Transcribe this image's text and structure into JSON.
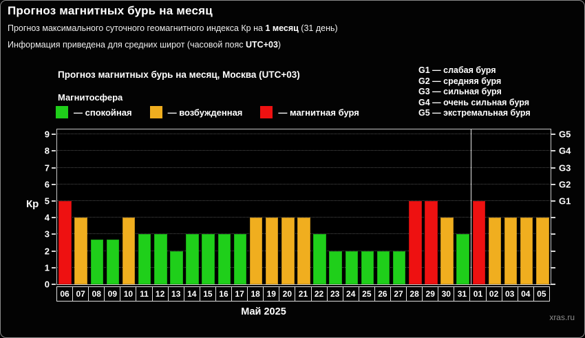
{
  "header": {
    "title": "Прогноз магнитных бурь на месяц",
    "line1": {
      "pre": "Прогноз максимального суточного геомагнитного индекса Кр на ",
      "bold": "1 месяц",
      "post": " (31 день)"
    },
    "line2": {
      "pre": "Информация приведена для средних широт (часовой пояс ",
      "bold": "UTC+03",
      "post": ")"
    }
  },
  "chart": {
    "title": "Прогноз магнитных бурь на месяц, Москва (UTC+03)",
    "legend_title": "Магнитосфера",
    "y_axis_label": "Кр",
    "x_axis_label": "Май 2025",
    "watermark": "xras.ru"
  },
  "chart_data": {
    "type": "bar",
    "title": "Прогноз магнитных бурь на месяц, Москва (UTC+03)",
    "xlabel": "Май 2025",
    "ylabel": "Кр",
    "ylim": [
      0,
      9.3
    ],
    "yticks": [
      0,
      1,
      2,
      3,
      4,
      5,
      6,
      7,
      8,
      9
    ],
    "grid": "horizontal-dotted",
    "legend_position": "top-left",
    "legend": [
      {
        "state": "quiet",
        "label": "— спокойная",
        "color": "#1fcf1a"
      },
      {
        "state": "excited",
        "label": "— возбужденная",
        "color": "#f0ae1f"
      },
      {
        "state": "storm",
        "label": "— магнитная буря",
        "color": "#ee1111"
      }
    ],
    "right_axis": [
      {
        "value": 5,
        "label": "G1"
      },
      {
        "value": 6,
        "label": "G2"
      },
      {
        "value": 7,
        "label": "G3"
      },
      {
        "value": 8,
        "label": "G4"
      },
      {
        "value": 9,
        "label": "G5"
      }
    ],
    "right_legend_lines": [
      "G1 — слабая буря",
      "G2 — средняя буря",
      "G3 — сильная буря",
      "G4 — очень сильная буря",
      "G5 — экстремальная буря"
    ],
    "categories": [
      "06",
      "07",
      "08",
      "09",
      "10",
      "11",
      "12",
      "13",
      "14",
      "15",
      "16",
      "17",
      "18",
      "19",
      "20",
      "21",
      "22",
      "23",
      "24",
      "25",
      "26",
      "27",
      "28",
      "29",
      "30",
      "31",
      "01",
      "02",
      "03",
      "04",
      "05"
    ],
    "values": [
      5,
      4,
      2.67,
      2.67,
      4,
      3,
      3,
      2,
      3,
      3,
      3,
      3,
      4,
      4,
      4,
      4,
      3,
      2,
      2,
      2,
      2,
      2,
      5,
      5,
      4,
      3,
      5,
      4,
      4,
      4,
      4
    ],
    "states": [
      "storm",
      "excited",
      "quiet",
      "quiet",
      "excited",
      "quiet",
      "quiet",
      "quiet",
      "quiet",
      "quiet",
      "quiet",
      "quiet",
      "excited",
      "excited",
      "excited",
      "excited",
      "quiet",
      "quiet",
      "quiet",
      "quiet",
      "quiet",
      "quiet",
      "storm",
      "storm",
      "excited",
      "quiet",
      "storm",
      "excited",
      "excited",
      "excited",
      "excited"
    ],
    "month_divider_slot": 26
  }
}
